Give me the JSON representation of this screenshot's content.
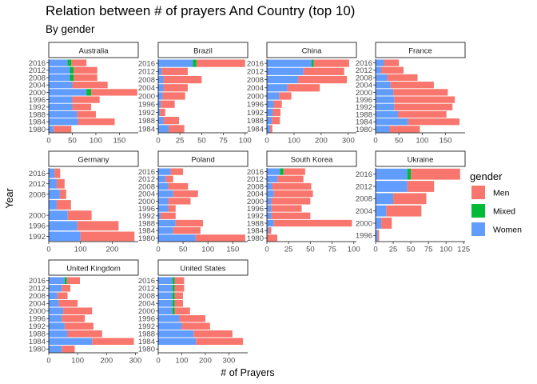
{
  "title": "Relation between # of prayers And Country (top 10)",
  "subtitle": "By gender",
  "chart_data": {
    "type": "bar",
    "orientation": "horizontal",
    "stacked": true,
    "xlabel": "# of Prayers",
    "ylabel": "Year",
    "legend": {
      "title": "gender",
      "position": "right",
      "entries": [
        "Men",
        "Mixed",
        "Women"
      ]
    },
    "colors": {
      "Men": "#F8766D",
      "Mixed": "#00BA38",
      "Women": "#619CFF"
    },
    "series_order": [
      "Women",
      "Mixed",
      "Men"
    ],
    "facets": [
      {
        "name": "Australia",
        "years": [
          1980,
          1984,
          1988,
          1992,
          1996,
          2000,
          2004,
          2008,
          2012,
          2016
        ],
        "year_ticks": [
          1980,
          1984,
          1988,
          1992,
          1996,
          2000,
          2004,
          2008,
          2012,
          2016
        ],
        "xlim": [
          0,
          190
        ],
        "xticks": [
          0,
          50,
          100,
          150
        ],
        "women": [
          10,
          62,
          60,
          50,
          50,
          80,
          50,
          45,
          45,
          40
        ],
        "mixed": [
          0,
          0,
          0,
          0,
          0,
          10,
          0,
          8,
          8,
          8
        ],
        "men": [
          38,
          78,
          40,
          40,
          58,
          98,
          75,
          50,
          50,
          32
        ]
      },
      {
        "name": "Brazil",
        "years": [
          1984,
          1988,
          1992,
          1996,
          2000,
          2004,
          2008,
          2012,
          2016
        ],
        "year_ticks": [
          1984,
          1988,
          1992,
          1996,
          2000,
          2004,
          2008,
          2012,
          2016
        ],
        "xlim": [
          0,
          103
        ],
        "xticks": [
          0,
          25,
          50,
          75,
          100
        ],
        "women": [
          12,
          6,
          2,
          3,
          5,
          6,
          6,
          4,
          40
        ],
        "mixed": [
          0,
          0,
          0,
          0,
          0,
          0,
          0,
          0,
          4
        ],
        "men": [
          18,
          18,
          6,
          16,
          26,
          28,
          44,
          30,
          56
        ]
      },
      {
        "name": "China",
        "years": [
          1984,
          1988,
          1992,
          1996,
          2000,
          2004,
          2008,
          2012,
          2016
        ],
        "year_ticks": [
          1984,
          1988,
          1992,
          1996,
          2000,
          2004,
          2008,
          2012,
          2016
        ],
        "xlim": [
          0,
          330
        ],
        "xticks": [
          0,
          100,
          200,
          300
        ],
        "women": [
          12,
          18,
          22,
          25,
          45,
          75,
          115,
          135,
          165
        ],
        "mixed": [
          0,
          0,
          0,
          0,
          0,
          0,
          0,
          0,
          8
        ],
        "men": [
          8,
          30,
          28,
          30,
          45,
          120,
          180,
          150,
          130
        ]
      },
      {
        "name": "France",
        "years": [
          1980,
          1984,
          1988,
          1992,
          1996,
          2000,
          2004,
          2008,
          2012,
          2016
        ],
        "year_ticks": [
          1980,
          1984,
          1988,
          1992,
          1996,
          2000,
          2004,
          2008,
          2012,
          2016
        ],
        "xlim": [
          0,
          192
        ],
        "xticks": [
          0,
          50,
          100,
          150
        ],
        "women": [
          30,
          70,
          48,
          40,
          40,
          38,
          32,
          25,
          12,
          18
        ],
        "mixed": [
          0,
          0,
          0,
          0,
          0,
          0,
          0,
          0,
          0,
          0
        ],
        "men": [
          65,
          110,
          104,
          125,
          130,
          117,
          93,
          65,
          48,
          32
        ]
      },
      {
        "name": "Germany",
        "years": [
          1992,
          1996,
          2000,
          2004,
          2008,
          2012,
          2016
        ],
        "year_ticks": [
          1992,
          1996,
          2000,
          2008,
          2012,
          2016
        ],
        "xlim": [
          0,
          282
        ],
        "xticks": [
          0,
          100,
          200
        ],
        "women": [
          100,
          90,
          60,
          25,
          35,
          25,
          18
        ],
        "mixed": [
          0,
          0,
          0,
          0,
          0,
          0,
          0
        ],
        "men": [
          170,
          130,
          75,
          45,
          20,
          25,
          18
        ]
      },
      {
        "name": "Poland",
        "years": [
          1980,
          1984,
          1988,
          1992,
          1996,
          2000,
          2004,
          2008,
          2012,
          2016
        ],
        "year_ticks": [
          1980,
          1984,
          1988,
          1992,
          1996,
          2000,
          2004,
          2008,
          2012,
          2016
        ],
        "xlim": [
          0,
          180
        ],
        "xticks": [
          0,
          50,
          100,
          150
        ],
        "women": [
          75,
          30,
          35,
          5,
          20,
          20,
          30,
          20,
          15,
          25
        ],
        "mixed": [
          0,
          0,
          0,
          0,
          0,
          0,
          0,
          0,
          0,
          0
        ],
        "men": [
          100,
          55,
          55,
          30,
          15,
          45,
          50,
          40,
          15,
          25
        ]
      },
      {
        "name": "South Korea",
        "years": [
          1980,
          1984,
          1988,
          1992,
          1996,
          2000,
          2004,
          2008,
          2012,
          2016
        ],
        "year_ticks": [
          1980,
          1984,
          1988,
          1992,
          1996,
          2000,
          2004,
          2008,
          2012,
          2016
        ],
        "xlim": [
          0,
          103
        ],
        "xticks": [
          0,
          25,
          50,
          75,
          100
        ],
        "women": [
          0,
          2,
          8,
          5,
          5,
          5,
          8,
          6,
          12,
          15
        ],
        "mixed": [
          0,
          0,
          0,
          0,
          0,
          0,
          0,
          0,
          0,
          4
        ],
        "men": [
          12,
          3,
          90,
          45,
          35,
          45,
          45,
          45,
          30,
          25
        ]
      },
      {
        "name": "Ukraine",
        "years": [
          1996,
          2000,
          2004,
          2008,
          2012,
          2016
        ],
        "year_ticks": [
          1996,
          2000,
          2004,
          2008,
          2012,
          2016
        ],
        "xlim": [
          0,
          127
        ],
        "xticks": [
          0,
          25,
          50,
          75,
          100,
          125
        ],
        "women": [
          3,
          8,
          15,
          25,
          45,
          45
        ],
        "mixed": [
          0,
          0,
          0,
          0,
          0,
          5
        ],
        "men": [
          2,
          15,
          50,
          47,
          38,
          70
        ]
      },
      {
        "name": "United Kingdom",
        "years": [
          1980,
          1984,
          1988,
          1992,
          1996,
          2000,
          2004,
          2008,
          2012,
          2016
        ],
        "year_ticks": [
          1980,
          1984,
          1988,
          1992,
          1996,
          2000,
          2004,
          2008,
          2012,
          2016
        ],
        "xlim": [
          0,
          310
        ],
        "xticks": [
          0,
          100,
          200,
          300
        ],
        "women": [
          45,
          150,
          65,
          55,
          45,
          50,
          35,
          30,
          45,
          55
        ],
        "mixed": [
          0,
          0,
          0,
          0,
          0,
          0,
          0,
          0,
          0,
          8
        ],
        "men": [
          45,
          145,
          120,
          100,
          80,
          100,
          65,
          35,
          30,
          45
        ]
      },
      {
        "name": "United States",
        "years": [
          1980,
          1984,
          1988,
          1992,
          1996,
          2000,
          2004,
          2008,
          2012,
          2016
        ],
        "year_ticks": [
          1980,
          1984,
          1988,
          1992,
          1996,
          2000,
          2004,
          2008,
          2012,
          2016
        ],
        "xlim": [
          0,
          380
        ],
        "xticks": [
          0,
          100,
          200,
          300
        ],
        "women": [
          0,
          160,
          150,
          100,
          90,
          60,
          60,
          60,
          60,
          60
        ],
        "mixed": [
          0,
          0,
          0,
          0,
          0,
          10,
          10,
          10,
          10,
          10
        ],
        "men": [
          0,
          200,
          165,
          120,
          110,
          65,
          35,
          35,
          40,
          40
        ]
      }
    ]
  }
}
